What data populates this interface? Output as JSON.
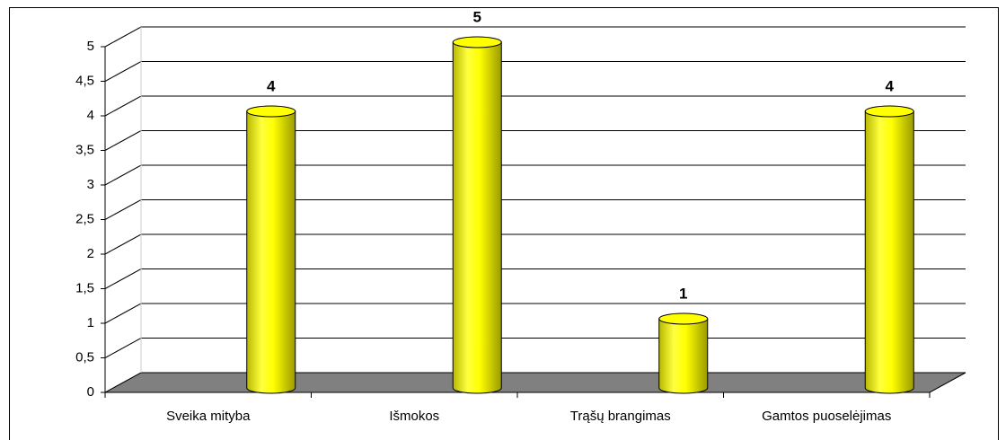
{
  "chart_data": {
    "type": "bar",
    "style": "3d-cylinder",
    "categories": [
      "Sveika mityba",
      "Išmokos",
      "Trąšų brangimas",
      "Gamtos puoselėjimas"
    ],
    "values": [
      4,
      5,
      1,
      4
    ],
    "color": "#ffff00",
    "ylim": [
      0,
      5
    ],
    "yticks": [
      0,
      {
        "value": 0.5,
        "label": "0,5"
      },
      1,
      {
        "value": 1.5,
        "label": "1,5"
      },
      2,
      {
        "value": 2.5,
        "label": "2,5"
      },
      3,
      {
        "value": 3.5,
        "label": "3,5"
      },
      4,
      {
        "value": 4.5,
        "label": "4,5"
      },
      5
    ],
    "grid": true
  }
}
